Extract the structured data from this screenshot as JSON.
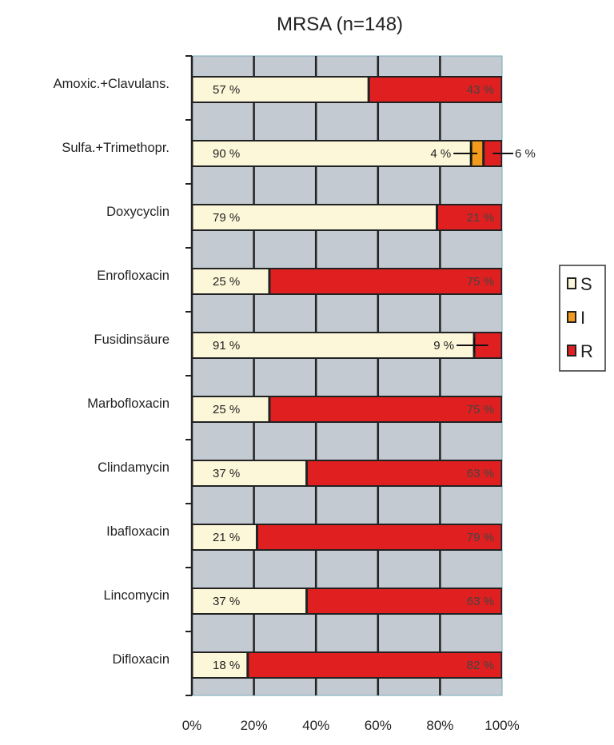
{
  "chart_data": {
    "type": "bar",
    "orientation": "horizontal",
    "stacked": true,
    "title": "MRSA (n=148)",
    "xlabel": "",
    "ylabel": "",
    "xlim": [
      0,
      100
    ],
    "x_ticks": [
      "0%",
      "20%",
      "40%",
      "60%",
      "80%",
      "100%"
    ],
    "grid": true,
    "legend_position": "right",
    "categories": [
      "Amoxic.+Clavulans.",
      "Sulfa.+Trimethopr.",
      "Doxycyclin",
      "Enrofloxacin",
      "Fusidinsäure",
      "Marbofloxacin",
      "Clindamycin",
      "Ibafloxacin",
      "Lincomycin",
      "Difloxacin"
    ],
    "series": [
      {
        "name": "S",
        "color": "#fdf7d9",
        "values": [
          57,
          90,
          79,
          25,
          91,
          25,
          37,
          21,
          37,
          18
        ]
      },
      {
        "name": "I",
        "color": "#f39a1c",
        "values": [
          0,
          4,
          0,
          0,
          0,
          0,
          0,
          0,
          0,
          0
        ]
      },
      {
        "name": "R",
        "color": "#e02020",
        "values": [
          43,
          6,
          21,
          75,
          9,
          75,
          63,
          79,
          63,
          82
        ]
      }
    ],
    "value_suffix": " %",
    "plot_background": "#c3cad2"
  }
}
